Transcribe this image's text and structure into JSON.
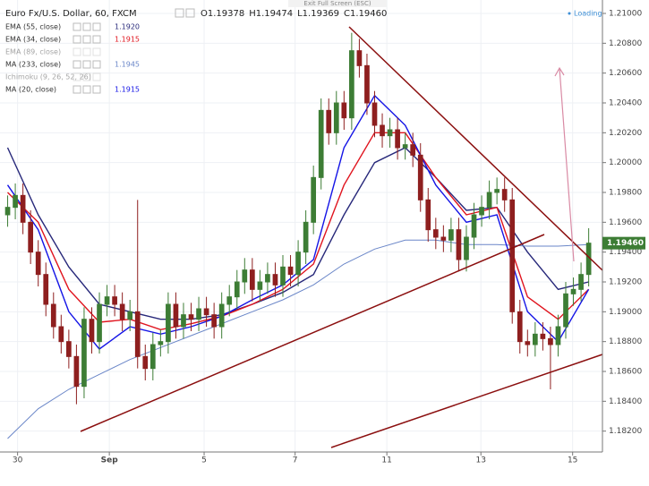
{
  "header": {
    "symbol": "Euro Fx/U.S. Dollar, 60, FXCM",
    "ohlc": [
      "O1.19378",
      "H1.19474",
      "L1.19369",
      "C1.19460"
    ],
    "exit": "Exit Full Screen (ESC)",
    "loading": "Loading"
  },
  "chart_data": {
    "type": "candlestick",
    "up_color": "#3d7d35",
    "down_color": "#8e1f1f",
    "x": [
      0,
      1,
      2,
      3,
      4,
      5,
      6,
      7,
      8,
      9,
      10,
      11,
      12,
      13,
      14,
      15,
      16,
      17,
      18,
      19,
      20,
      21,
      22,
      23,
      24,
      25,
      26,
      27,
      28,
      29,
      30,
      31,
      32,
      33,
      34,
      35,
      36,
      37,
      38,
      39,
      40,
      41,
      42,
      43,
      44,
      45,
      46,
      47,
      48,
      49,
      50,
      51,
      52,
      53,
      54,
      55,
      56,
      57,
      58,
      59,
      60,
      61,
      62,
      63,
      64,
      65,
      66,
      67,
      68,
      69,
      70,
      71,
      72,
      73,
      74,
      75,
      76
    ],
    "open": [
      1.1965,
      1.197,
      1.1978,
      1.196,
      1.194,
      1.1925,
      1.1905,
      1.189,
      1.188,
      1.187,
      1.185,
      1.1895,
      1.188,
      1.1905,
      1.191,
      1.1905,
      1.1895,
      1.19,
      1.187,
      1.1862,
      1.1878,
      1.188,
      1.1905,
      1.189,
      1.1898,
      1.1895,
      1.1902,
      1.1898,
      1.189,
      1.1905,
      1.191,
      1.192,
      1.1928,
      1.1915,
      1.192,
      1.1925,
      1.1918,
      1.193,
      1.1925,
      1.194,
      1.196,
      1.199,
      1.2035,
      1.202,
      1.204,
      1.203,
      1.2075,
      1.2065,
      1.204,
      1.2025,
      1.2018,
      1.2022,
      1.201,
      1.2012,
      1.2005,
      1.1975,
      1.1955,
      1.195,
      1.1948,
      1.1955,
      1.1935,
      1.195,
      1.1965,
      1.197,
      1.198,
      1.1982,
      1.1975,
      1.19,
      1.188,
      1.1878,
      1.1885,
      1.1882,
      1.1878,
      1.189,
      1.1912,
      1.1915,
      1.1925
    ],
    "high": [
      1.1978,
      1.1986,
      1.1986,
      1.1968,
      1.1948,
      1.1933,
      1.1913,
      1.1898,
      1.1888,
      1.1878,
      1.1903,
      1.1903,
      1.1913,
      1.1918,
      1.1918,
      1.1913,
      1.1908,
      1.1975,
      1.1878,
      1.1886,
      1.1888,
      1.1913,
      1.1913,
      1.1906,
      1.1906,
      1.191,
      1.191,
      1.1906,
      1.1913,
      1.1918,
      1.1928,
      1.1936,
      1.1936,
      1.1928,
      1.1933,
      1.1933,
      1.1938,
      1.1938,
      1.1948,
      1.1968,
      1.1998,
      1.2043,
      1.2043,
      1.2048,
      1.2048,
      1.2087,
      1.2083,
      1.2073,
      1.2048,
      1.2033,
      1.203,
      1.203,
      1.202,
      1.202,
      1.2013,
      1.1983,
      1.1963,
      1.1958,
      1.1963,
      1.1963,
      1.1958,
      1.1973,
      1.1978,
      1.1988,
      1.199,
      1.199,
      1.1983,
      1.1908,
      1.1888,
      1.1893,
      1.1893,
      1.189,
      1.1898,
      1.192,
      1.1923,
      1.1933,
      1.1956
    ],
    "low": [
      1.1957,
      1.1962,
      1.1952,
      1.1932,
      1.1917,
      1.1897,
      1.1882,
      1.1872,
      1.1862,
      1.1838,
      1.1842,
      1.1872,
      1.1872,
      1.1897,
      1.1897,
      1.1887,
      1.1887,
      1.1862,
      1.1854,
      1.1854,
      1.187,
      1.1872,
      1.1882,
      1.1882,
      1.1887,
      1.1887,
      1.189,
      1.1882,
      1.1882,
      1.1897,
      1.1902,
      1.1912,
      1.1907,
      1.1907,
      1.1912,
      1.191,
      1.191,
      1.1917,
      1.1917,
      1.1932,
      1.1952,
      1.1982,
      1.2012,
      1.2012,
      1.2022,
      1.2022,
      1.2057,
      1.2032,
      1.2017,
      1.201,
      1.201,
      1.2002,
      1.2002,
      1.1997,
      1.1967,
      1.1947,
      1.1942,
      1.194,
      1.194,
      1.1927,
      1.1927,
      1.1942,
      1.1957,
      1.1962,
      1.1972,
      1.1967,
      1.1892,
      1.1872,
      1.187,
      1.187,
      1.1874,
      1.1848,
      1.187,
      1.1882,
      1.1904,
      1.1907,
      1.1917
    ],
    "close": [
      1.197,
      1.1978,
      1.196,
      1.194,
      1.1925,
      1.1905,
      1.189,
      1.188,
      1.187,
      1.185,
      1.1895,
      1.188,
      1.1905,
      1.191,
      1.1905,
      1.1895,
      1.19,
      1.187,
      1.1862,
      1.1878,
      1.188,
      1.1905,
      1.189,
      1.1898,
      1.1895,
      1.1902,
      1.1898,
      1.189,
      1.1905,
      1.191,
      1.192,
      1.1928,
      1.1915,
      1.192,
      1.1925,
      1.1918,
      1.193,
      1.1925,
      1.194,
      1.196,
      1.199,
      1.2035,
      1.202,
      1.204,
      1.203,
      1.2075,
      1.2065,
      1.204,
      1.2025,
      1.2018,
      1.2022,
      1.201,
      1.2012,
      1.2005,
      1.1975,
      1.1955,
      1.195,
      1.1948,
      1.1955,
      1.1935,
      1.195,
      1.1965,
      1.197,
      1.198,
      1.1982,
      1.1975,
      1.19,
      1.188,
      1.1878,
      1.1885,
      1.1882,
      1.1878,
      1.189,
      1.1912,
      1.1915,
      1.1925,
      1.1946
    ],
    "xlim": [
      -1,
      77.8
    ],
    "xticks": [
      {
        "value": 1.3,
        "label": "30"
      },
      {
        "value": 13.3,
        "label": "Sep"
      },
      {
        "value": 25.7,
        "label": "5"
      },
      {
        "value": 37.6,
        "label": "7"
      },
      {
        "value": 49.6,
        "label": "11"
      },
      {
        "value": 61.9,
        "label": "13"
      },
      {
        "value": 73.9,
        "label": "15"
      }
    ],
    "ylim": [
      1.1806,
      1.2109
    ],
    "yticks": [
      {
        "value": 1.182,
        "label": "1.18200"
      },
      {
        "value": 1.184,
        "label": "1.18400"
      },
      {
        "value": 1.186,
        "label": "1.18600"
      },
      {
        "value": 1.188,
        "label": "1.18800"
      },
      {
        "value": 1.19,
        "label": "1.19000"
      },
      {
        "value": 1.192,
        "label": "1.19200"
      },
      {
        "value": 1.194,
        "label": "1.19400"
      },
      {
        "value": 1.196,
        "label": "1.19600"
      },
      {
        "value": 1.198,
        "label": "1.19800"
      },
      {
        "value": 1.2,
        "label": "1.20000"
      },
      {
        "value": 1.202,
        "label": "1.20200"
      },
      {
        "value": 1.204,
        "label": "1.20400"
      },
      {
        "value": 1.206,
        "label": "1.20600"
      },
      {
        "value": 1.208,
        "label": "1.20800"
      },
      {
        "value": 1.21,
        "label": "1.21000"
      }
    ],
    "grid": true,
    "last_price": 1.1946,
    "last_price_label": "1.19460",
    "last_price_color": "#3d7d35",
    "indicators": [
      {
        "name": "EMA (55, close)",
        "value_label": "1.1920",
        "color": "#27287a",
        "active": true,
        "x": [
          0,
          4,
          8,
          12,
          16,
          20,
          24,
          28,
          32,
          36,
          40,
          44,
          48,
          52,
          56,
          60,
          64,
          68,
          72,
          76
        ],
        "values": [
          1.201,
          1.1965,
          1.193,
          1.1905,
          1.19,
          1.1895,
          1.1895,
          1.1898,
          1.1905,
          1.1913,
          1.1925,
          1.1965,
          1.2,
          1.201,
          1.199,
          1.1968,
          1.197,
          1.194,
          1.1915,
          1.192
        ]
      },
      {
        "name": "EMA (34, close)",
        "value_label": "1.1915",
        "color": "#e0141e",
        "active": true,
        "x": [
          0,
          4,
          8,
          12,
          16,
          20,
          24,
          28,
          32,
          36,
          40,
          44,
          48,
          52,
          56,
          60,
          64,
          68,
          72,
          76
        ],
        "values": [
          1.198,
          1.196,
          1.1915,
          1.1893,
          1.1895,
          1.1888,
          1.1892,
          1.1897,
          1.1905,
          1.1915,
          1.1932,
          1.1985,
          1.202,
          1.202,
          1.199,
          1.1965,
          1.197,
          1.191,
          1.1895,
          1.1915
        ]
      },
      {
        "name": "EMA (89, close)",
        "color": "#9aa0b4",
        "active": false
      },
      {
        "name": "MA (233, close)",
        "value_label": "1.1945",
        "color": "#6a86c8",
        "active": true,
        "x": [
          0,
          4,
          8,
          12,
          16,
          20,
          24,
          28,
          32,
          36,
          40,
          44,
          48,
          52,
          56,
          60,
          64,
          68,
          72,
          76
        ],
        "values": [
          1.1815,
          1.1835,
          1.1848,
          1.1858,
          1.1868,
          1.1876,
          1.1884,
          1.1892,
          1.19,
          1.1908,
          1.1918,
          1.1932,
          1.1942,
          1.1948,
          1.1948,
          1.1945,
          1.1945,
          1.1944,
          1.1944,
          1.1945
        ]
      },
      {
        "name": "Ichimoku (9, 26, 52, 26)",
        "color": "#9aa0b4",
        "active": false
      },
      {
        "name": "MA (20, close)",
        "value_label": "1.1915",
        "color": "#1414e6",
        "active": true,
        "x": [
          0,
          4,
          8,
          12,
          16,
          20,
          24,
          28,
          32,
          36,
          40,
          44,
          48,
          52,
          56,
          60,
          64,
          68,
          72,
          76
        ],
        "values": [
          1.1985,
          1.1955,
          1.19,
          1.1875,
          1.189,
          1.1885,
          1.189,
          1.1897,
          1.1908,
          1.1918,
          1.1935,
          1.201,
          1.2045,
          1.2025,
          1.1985,
          1.196,
          1.1965,
          1.19,
          1.188,
          1.1915
        ]
      }
    ]
  }
}
